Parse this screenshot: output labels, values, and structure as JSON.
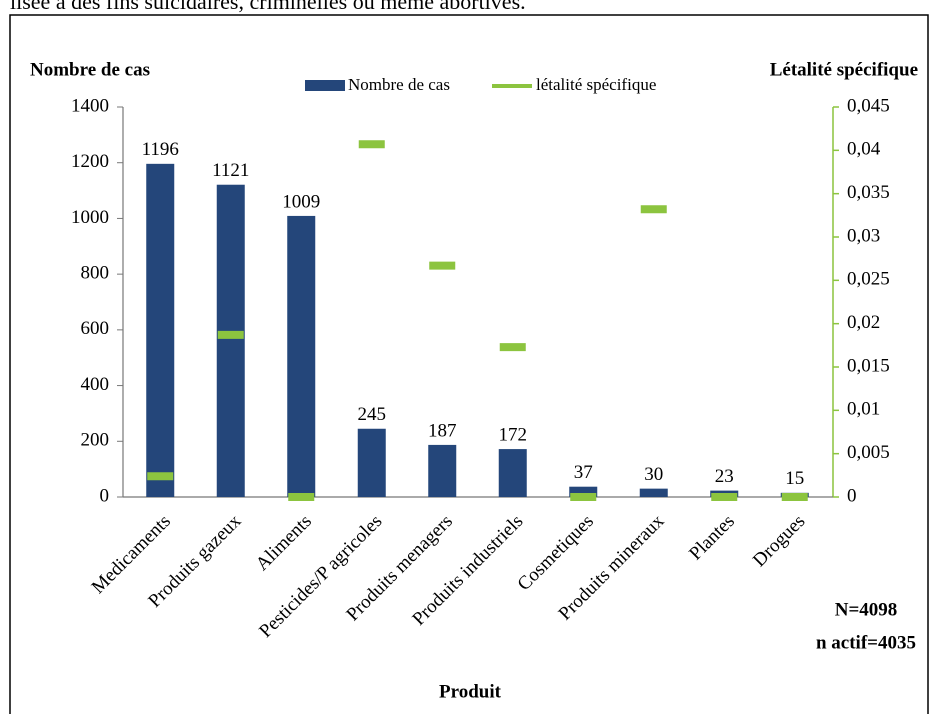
{
  "chart_data": {
    "type": "bar",
    "context_text": "lisée à des fins suicidaires, criminelles ou même abortives.",
    "y_label": "Nombre de cas",
    "y2_label": "Létalité spécifique",
    "x_label": "Produit",
    "annotations": [
      "N=4098",
      "n actif=4035"
    ],
    "categories": [
      "Medicaments",
      "Produits gazeux",
      "Aliments",
      "Pesticides/P agricoles",
      "Produits menagers",
      "Produits industriels",
      "Cosmetiques",
      "Produits mineraux",
      "Plantes",
      "Drogues"
    ],
    "series": [
      {
        "name": "Nombre de cas",
        "color": "#24467a",
        "type": "bar",
        "values": [
          1196,
          1121,
          1009,
          245,
          187,
          172,
          37,
          30,
          23,
          15
        ],
        "show_value_labels": true
      },
      {
        "name": "létalité spécifique",
        "color": "#8cc43f",
        "type": "dash",
        "axis": "y2",
        "values": [
          0.0024,
          0.0187,
          0,
          0.0407,
          0.0267,
          0.0173,
          0,
          0.0332,
          0,
          0
        ]
      }
    ],
    "ylim": [
      0,
      1400
    ],
    "yticks": [
      0,
      200,
      400,
      600,
      800,
      1000,
      1200,
      1400
    ],
    "y2lim": [
      0,
      0.045
    ],
    "y2ticks": [
      0,
      {
        "value": 0.005,
        "label": "0,005"
      },
      {
        "value": 0.01,
        "label": "0,01"
      },
      {
        "value": 0.015,
        "label": "0,015"
      },
      {
        "value": 0.02,
        "label": "0,02"
      },
      {
        "value": 0.025,
        "label": "0,025"
      },
      {
        "value": 0.03,
        "label": "0,03"
      },
      {
        "value": 0.035,
        "label": "0,035"
      },
      {
        "value": 0.04,
        "label": "0,04"
      },
      {
        "value": 0.045,
        "label": "0,045"
      }
    ],
    "grid": false,
    "legend": "top"
  }
}
